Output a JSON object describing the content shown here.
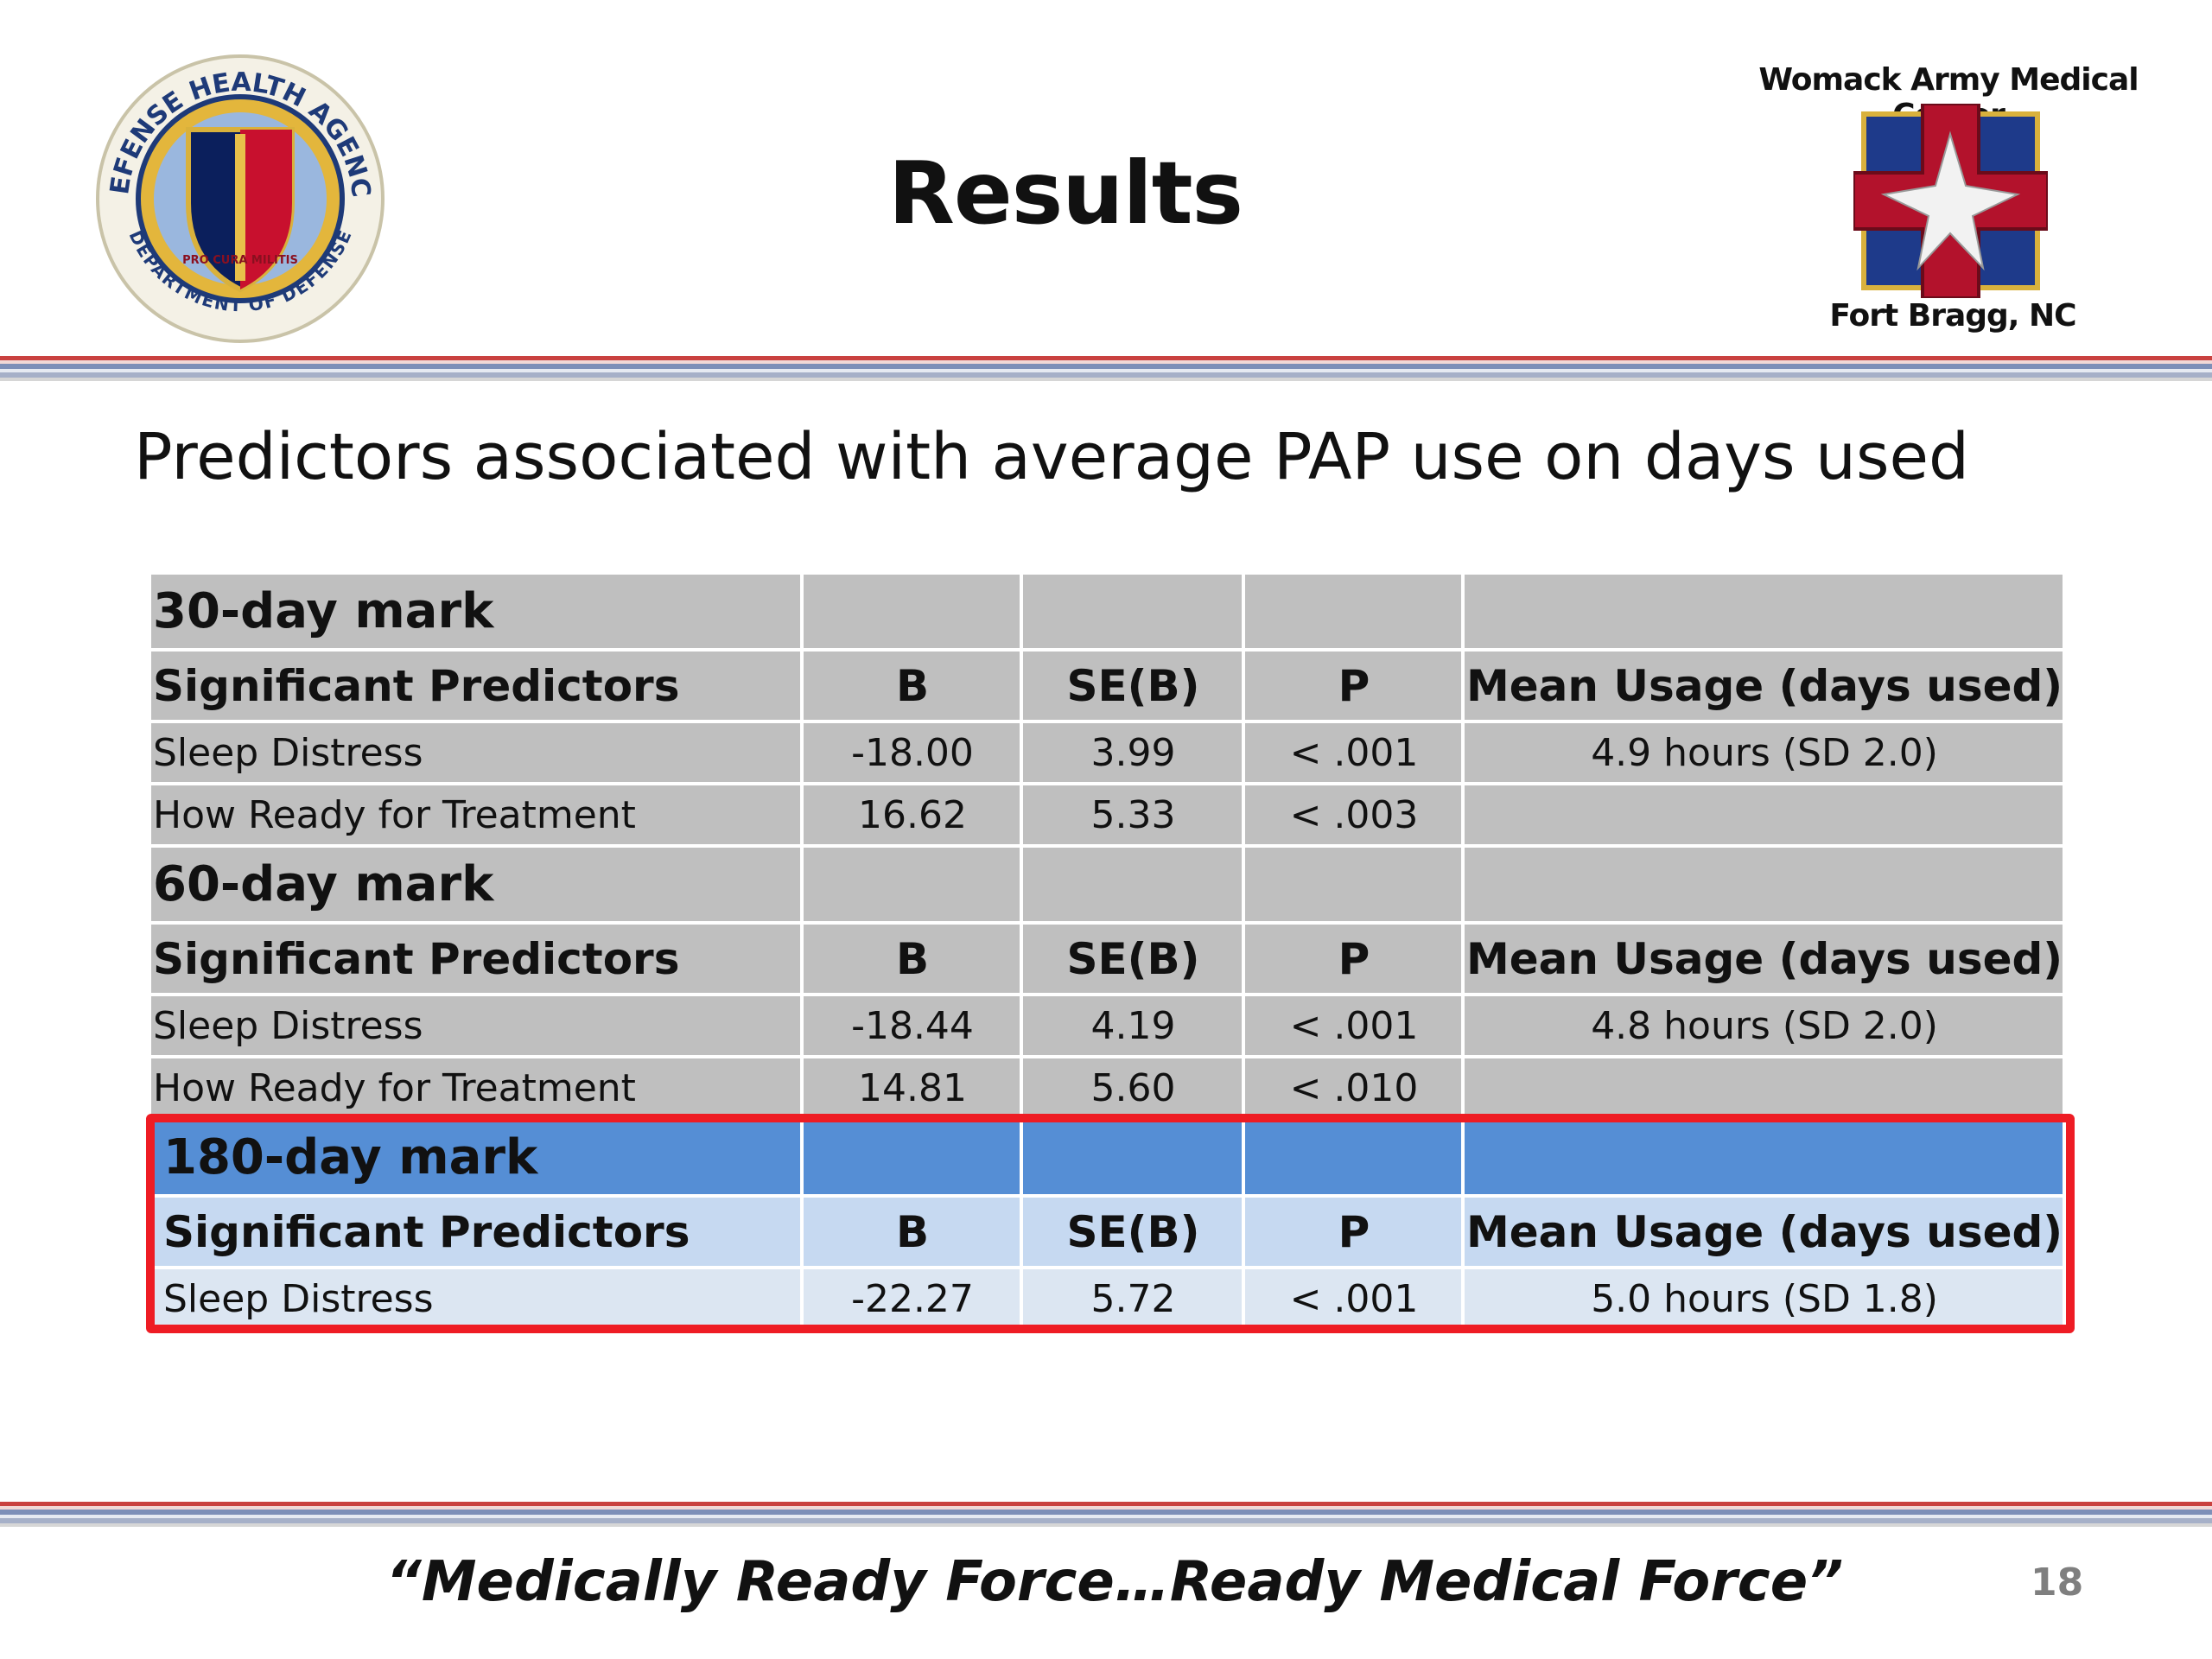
{
  "header": {
    "title": "Results",
    "left_logo": {
      "top": "DEFENSE HEALTH AGENCY",
      "bottom": "DEPARTMENT OF DEFENSE",
      "motto": "PRO CURA MILITIS"
    },
    "right_logo": {
      "top": "Womack Army Medical Center",
      "bottom": "Fort Bragg, NC"
    }
  },
  "subtitle": "Predictors associated with average PAP use on days used",
  "table": {
    "sections": [
      {
        "title": "30-day mark",
        "highlighted": false,
        "columns": [
          "Significant Predictors",
          "B",
          "SE(B)",
          "P",
          "Mean Usage (days used)"
        ],
        "rows": [
          [
            "Sleep Distress",
            "-18.00",
            "3.99",
            "< .001",
            "4.9 hours (SD 2.0)"
          ],
          [
            "How Ready for Treatment",
            "16.62",
            "5.33",
            "< .003",
            null
          ]
        ]
      },
      {
        "title": "60-day mark",
        "highlighted": false,
        "columns": [
          "Significant Predictors",
          "B",
          "SE(B)",
          "P",
          "Mean Usage (days used)"
        ],
        "rows": [
          [
            "Sleep Distress",
            "-18.44",
            "4.19",
            "< .001",
            "4.8 hours (SD 2.0)"
          ],
          [
            "How Ready for Treatment",
            "14.81",
            "5.60",
            "< .010",
            null
          ]
        ]
      },
      {
        "title": "180-day mark",
        "highlighted": true,
        "columns": [
          "Significant Predictors",
          "B",
          "SE(B)",
          "P",
          "Mean Usage (days used)"
        ],
        "rows": [
          [
            "Sleep Distress",
            "-22.27",
            "5.72",
            "< .001",
            "5.0 hours (SD 1.8)"
          ]
        ]
      }
    ]
  },
  "footer": {
    "motto": "“Medically Ready Force…Ready Medical Force”",
    "page_number": 18
  }
}
